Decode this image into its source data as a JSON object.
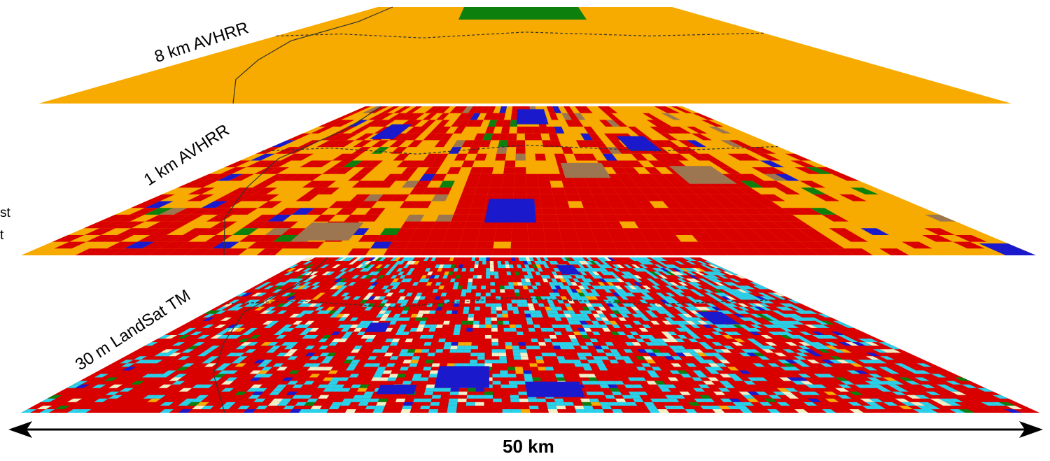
{
  "layers": [
    {
      "label": "8 km AVHRR",
      "resolution": "8 km",
      "sensor": "AVHRR"
    },
    {
      "label": "1 km AVHRR",
      "resolution": "1 km",
      "sensor": "AVHRR"
    },
    {
      "label": "30 m LandSat TM",
      "resolution": "30 m",
      "sensor": "LandSat TM"
    }
  ],
  "legend_fragments": [
    "st",
    "t"
  ],
  "scale_bar": {
    "label": "50 km"
  },
  "colors": {
    "mixed_forest": "#f7aa00",
    "deciduous": "#d90000",
    "water": "#1a1acc",
    "conifer": "#0d7f0d",
    "barren": "#9c7650",
    "wetland": "#27d2ea",
    "grass": "#f0f0c8",
    "border_line": "#333333",
    "arrow": "#000000"
  }
}
